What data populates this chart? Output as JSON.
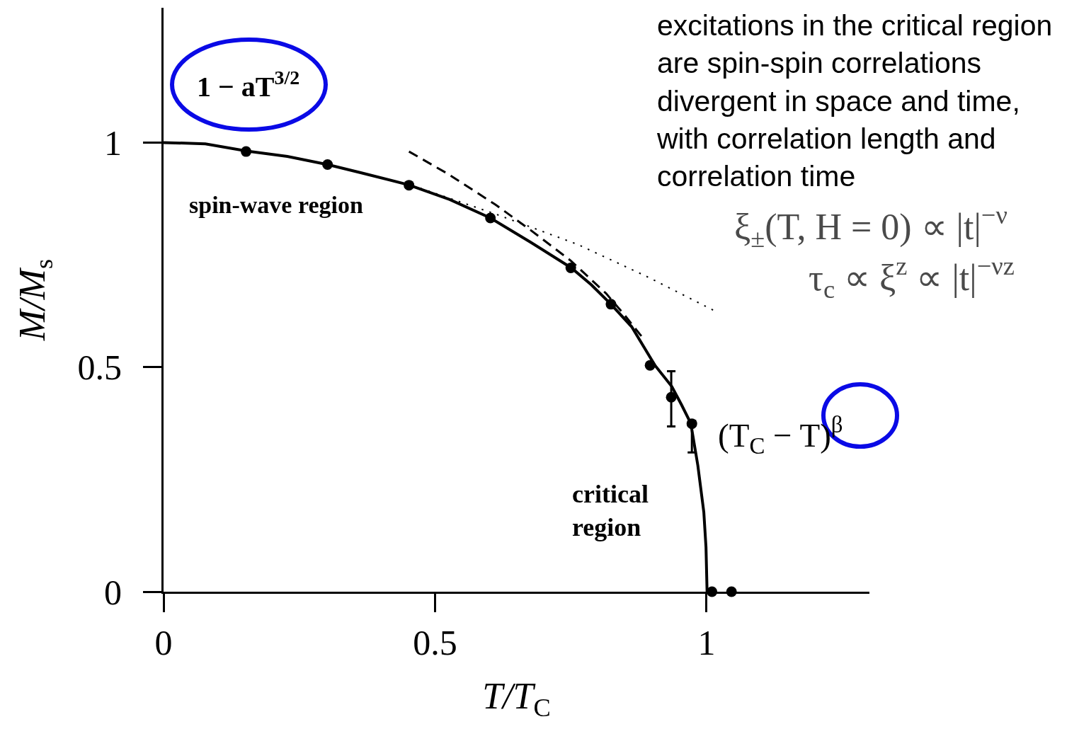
{
  "chart_data": {
    "type": "line",
    "xlabel": "T/T$_{C}$",
    "ylabel": "M/M$_{s}$",
    "xlim": [
      0,
      1.3
    ],
    "ylim": [
      0,
      1.3
    ],
    "xticks": [
      0,
      0.5,
      1
    ],
    "yticks": [
      0,
      0.5,
      1
    ],
    "series": [
      {
        "type": "scatter",
        "marker": "circle",
        "color": "#000000",
        "x": [
          0.152,
          0.302,
          0.452,
          0.602,
          0.75,
          0.824,
          0.896,
          0.935,
          0.973,
          1.01,
          1.046
        ],
        "values": [
          0.98,
          0.951,
          0.905,
          0.832,
          0.721,
          0.64,
          0.504,
          0.433,
          0.374,
          0,
          0
        ],
        "errors": [
          null,
          null,
          null,
          null,
          null,
          null,
          null,
          [
            0.368,
            0.491
          ],
          [
            0.31,
            0.38
          ],
          null,
          null
        ]
      },
      {
        "line_style": "solid",
        "color": "#000000",
        "x": [
          0,
          0.077,
          0.154,
          0.228,
          0.302,
          0.376,
          0.451,
          0.527,
          0.602,
          0.676,
          0.751,
          0.788,
          0.824,
          0.862,
          0.905,
          0.936,
          0.954,
          0.971,
          0.984,
          0.995,
          0.999,
          1.001
        ],
        "values": [
          1.0,
          0.997,
          0.981,
          0.969,
          0.951,
          0.929,
          0.906,
          0.873,
          0.832,
          0.778,
          0.721,
          0.683,
          0.64,
          0.59,
          0.504,
          0.457,
          0.416,
          0.375,
          0.281,
          0.177,
          0.099,
          0
        ]
      },
      {
        "line_style": "dashed",
        "color": "#000000",
        "x": [
          0.452,
          0.524,
          0.611,
          0.676,
          0.75,
          0.815,
          0.849,
          0.88
        ],
        "values": [
          0.98,
          0.93,
          0.862,
          0.805,
          0.737,
          0.664,
          0.616,
          0.569
        ]
      },
      {
        "line_style": "dotted",
        "color": "#000000",
        "x": [
          0.459,
          0.611,
          0.763,
          0.893,
          1.012
        ],
        "values": [
          0.904,
          0.841,
          0.773,
          0.7,
          0.627
        ]
      }
    ],
    "annotations": [
      "1 − aT$^{3/2}$",
      "spin-wave region",
      "critical\nregion",
      "(T$_{C}$ − T)$^{β}$",
      "excitations in the critical region\nare spin-spin correlations\ndivergent in space and time,\nwith correlation length and\ncorrelation time",
      "ξ$_{±}$(T, H = 0) ∝ |t|$^{−ν}$",
      "τ$_{c}$ ∝ ξ$^{z}$ ∝ |t|$^{−νz}$"
    ]
  }
}
